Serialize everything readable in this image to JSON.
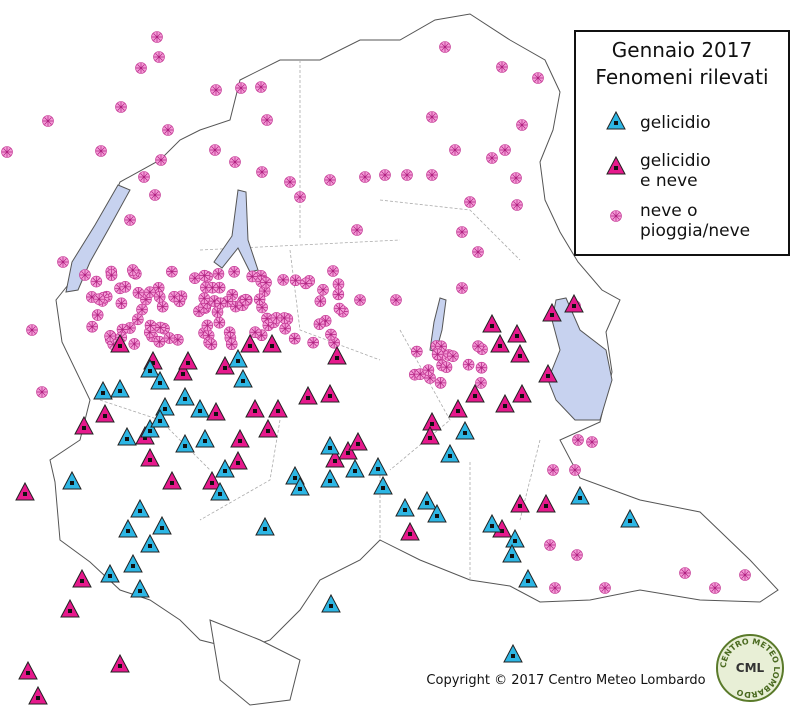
{
  "legend": {
    "title": [
      "Gennaio 2017",
      "Fenomeni rilevati"
    ],
    "items": [
      {
        "lines": [
          "gelicidio"
        ]
      },
      {
        "lines": [
          "gelicidio",
          "e neve"
        ]
      },
      {
        "lines": [
          "neve o",
          "pioggia/neve"
        ]
      }
    ]
  },
  "copyright": "Copyright © 2017 Centro Meteo Lombardo",
  "logo": {
    "short": "CML",
    "ring": "CENTRO METEO LOMBARDO"
  }
}
